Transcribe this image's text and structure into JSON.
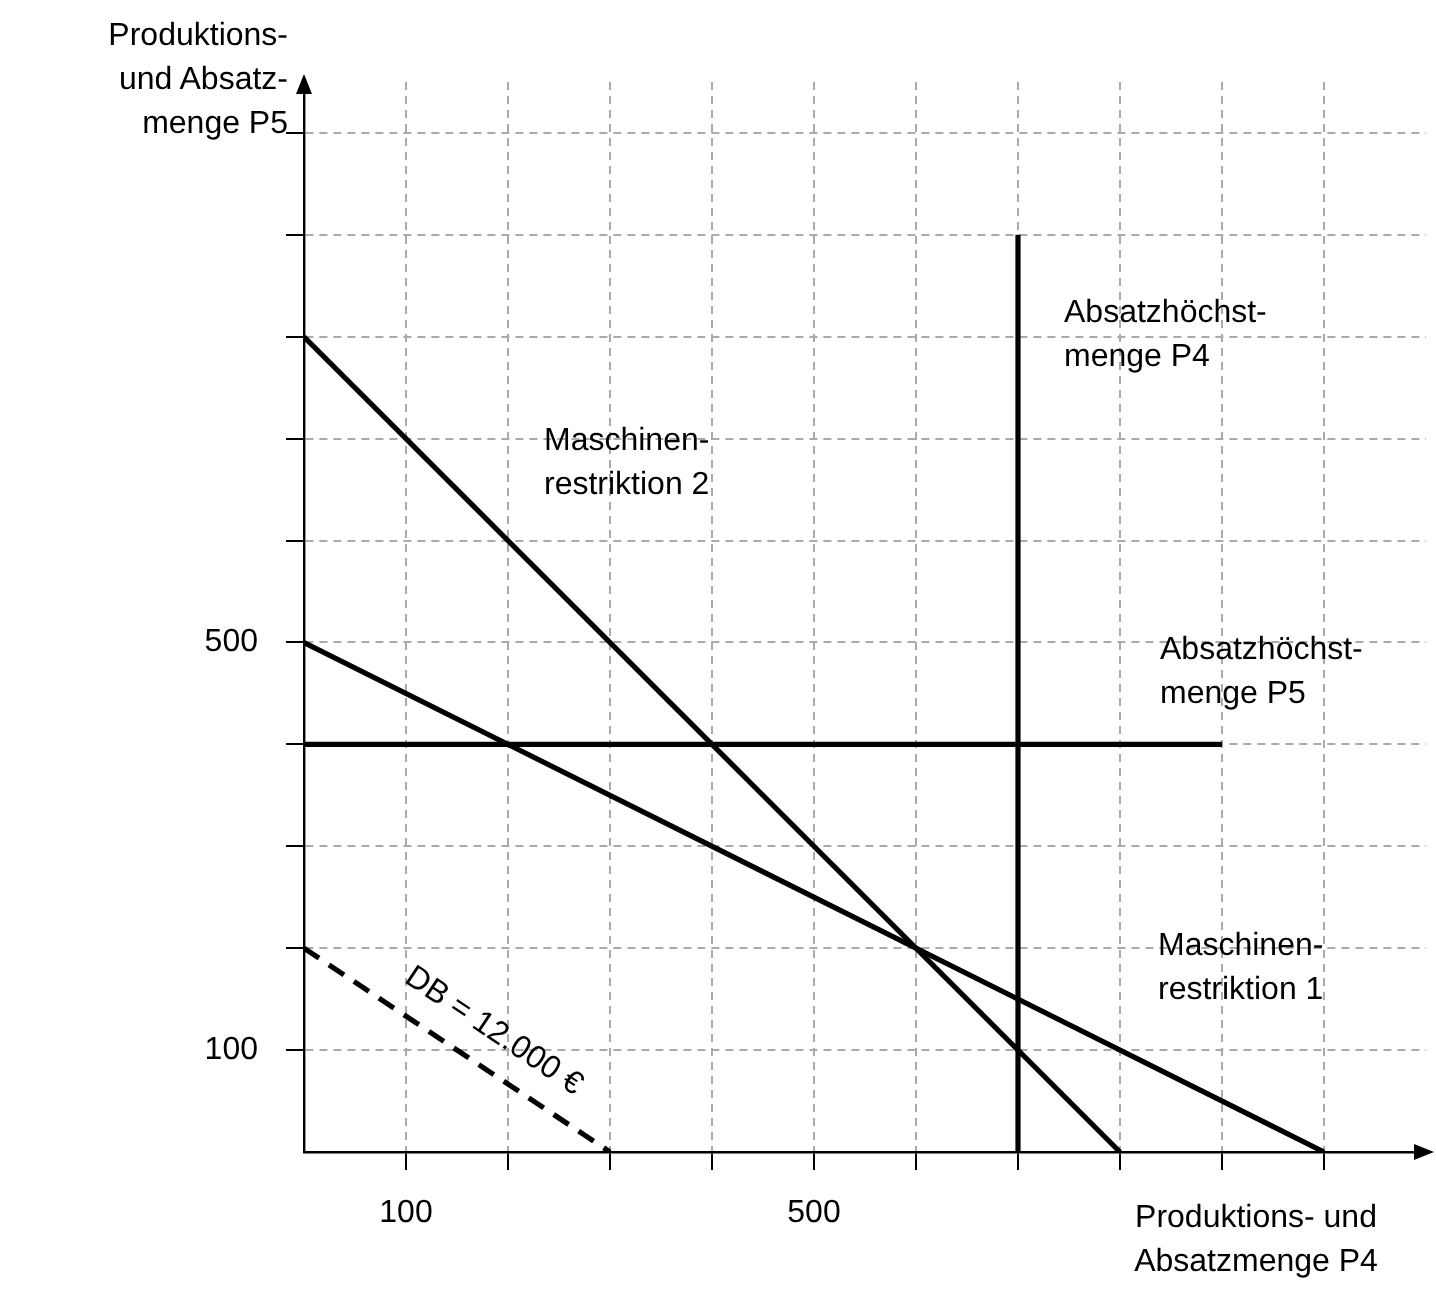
{
  "chart_data": {
    "type": "line",
    "xlabel": "Produktions- und\nAbsatzmenge P4",
    "ylabel": "Produktions-\nund Absatz-\nmenge P5",
    "xlim": [
      0,
      1100
    ],
    "ylim": [
      0,
      1050
    ],
    "xticks": [
      100,
      {
        "value": 200,
        "label": null
      },
      {
        "value": 300,
        "label": null
      },
      {
        "value": 400,
        "label": null
      },
      500,
      {
        "value": 600,
        "label": null
      },
      {
        "value": 700,
        "label": null
      },
      {
        "value": 800,
        "label": null
      },
      {
        "value": 900,
        "label": null
      },
      {
        "value": 1000,
        "label": null
      }
    ],
    "yticks": [
      100,
      {
        "value": 200,
        "label": null
      },
      {
        "value": 300,
        "label": null
      },
      {
        "value": 400,
        "label": null
      },
      500,
      {
        "value": 600,
        "label": null
      },
      {
        "value": 700,
        "label": null
      },
      {
        "value": 800,
        "label": null
      },
      {
        "value": 900,
        "label": null
      },
      {
        "value": 1000,
        "label": null
      }
    ],
    "grid": true,
    "marker": "none",
    "series": [
      {
        "name": "Maschinen-\nrestriktion 2",
        "color": "#000000",
        "x": [
          0,
          800
        ],
        "values": [
          800,
          0
        ]
      },
      {
        "name": "Maschinen-\nrestriktion 1",
        "color": "#000000",
        "x": [
          0,
          1000
        ],
        "values": [
          500,
          0
        ]
      },
      {
        "name": "Absatzhöchst-\nmenge P5",
        "color": "#000000",
        "x": [
          0,
          900
        ],
        "values": [
          400,
          400
        ]
      },
      {
        "name": "Absatzhöchst-\nmenge P4",
        "color": "#000000",
        "x": [
          700,
          700
        ],
        "values": [
          0,
          900
        ]
      },
      {
        "name": "DB = 12.000 €",
        "color": "#000000",
        "x": [
          0,
          300
        ],
        "values": [
          200,
          0
        ],
        "line_style": "dashed"
      }
    ]
  }
}
